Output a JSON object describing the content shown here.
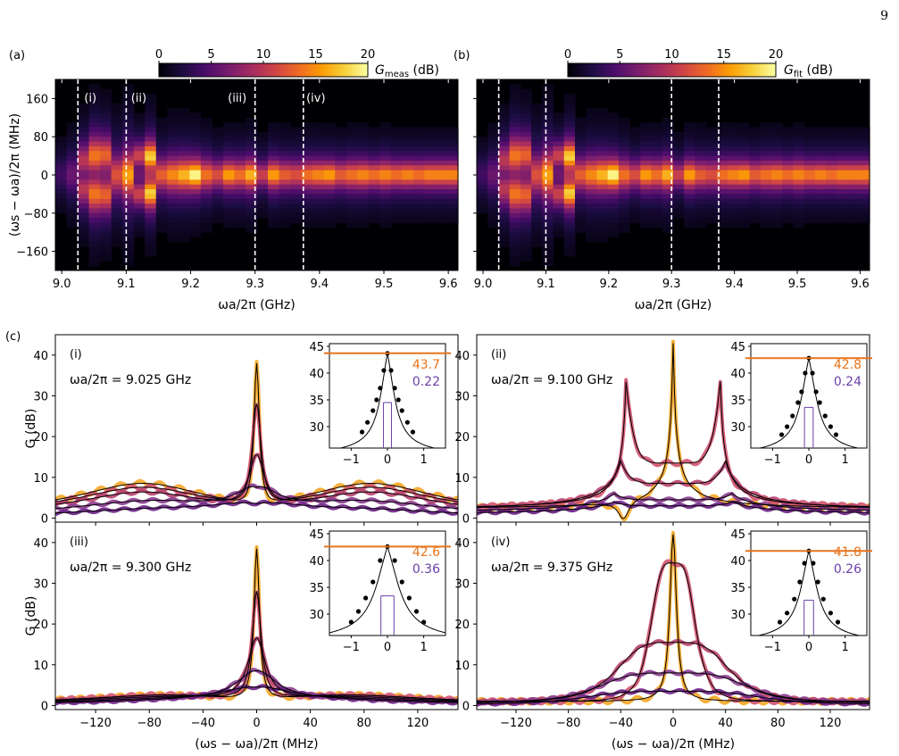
{
  "page_number": "9",
  "colors": {
    "colormap_stops": [
      "#000004",
      "#1b0c41",
      "#4a0c6b",
      "#781c6d",
      "#a52c60",
      "#cf4446",
      "#ed6925",
      "#fb9b06",
      "#f7d13d",
      "#fcffa4"
    ],
    "gain_colormap_stops": [
      "#000004",
      "#3b0f70",
      "#8c2981",
      "#de4968",
      "#fe9f6d",
      "#fcfdbf"
    ],
    "trace_colors": [
      "#f5a623",
      "#d2526e",
      "#b8416e",
      "#8a3a8f",
      "#6a1f84"
    ],
    "fit_line": "#000000",
    "inset_peak_line": "#e8731a",
    "inset_width_line": "#6b3fa8"
  },
  "panel_a": {
    "label": "(a)",
    "colorbar_label": "G",
    "colorbar_sub": "meas",
    "colorbar_unit": "(dB)",
    "colorbar_ticks": [
      "0",
      "5",
      "10",
      "15",
      "20"
    ],
    "marker_labels": [
      "(i)",
      "(ii)",
      "(iii)",
      "(iv)"
    ]
  },
  "panel_b": {
    "label": "(b)",
    "colorbar_label": "G",
    "colorbar_sub": "fit",
    "colorbar_unit": "(dB)",
    "colorbar_ticks": [
      "0",
      "5",
      "10",
      "15",
      "20"
    ]
  },
  "panel_c": {
    "label": "(c)"
  },
  "chart_data": [
    {
      "type": "heatmap",
      "id": "a",
      "title": "",
      "xlabel": "ωa/2π (GHz)",
      "ylabel": "(ωs − ωa)/2π (MHz)",
      "xlim": [
        8.99,
        9.615
      ],
      "ylim": [
        -200,
        200
      ],
      "xticks": [
        9.0,
        9.1,
        9.2,
        9.3,
        9.4,
        9.5,
        9.6
      ],
      "xtick_labels": [
        "9.0",
        "9.1",
        "9.2",
        "9.3",
        "9.4",
        "9.5",
        "9.6"
      ],
      "yticks": [
        160,
        80,
        0,
        -80,
        -160
      ],
      "ytick_labels": [
        "160",
        "80",
        "0",
        "−80",
        "−160"
      ],
      "zlim": [
        0,
        20
      ],
      "zlabel": "Gmeas (dB)",
      "marker_lines_ghz": [
        9.025,
        9.1,
        9.3,
        9.375
      ],
      "columns_peak_db": [
        4,
        6,
        10,
        14,
        13,
        12,
        16,
        11,
        18,
        13,
        15,
        17,
        20,
        14,
        12,
        16,
        14,
        17,
        11,
        16,
        13,
        12,
        14,
        15,
        16,
        13,
        14,
        15,
        14,
        15,
        14,
        15,
        14,
        15,
        15,
        15
      ],
      "columns_width_mhz": [
        90,
        95,
        100,
        105,
        100,
        90,
        95,
        75,
        80,
        70,
        72,
        68,
        60,
        65,
        60,
        58,
        62,
        60,
        55,
        58,
        60,
        62,
        60,
        58,
        55,
        58,
        60,
        58,
        56,
        58,
        56,
        54,
        56,
        55,
        54,
        55
      ],
      "columns_split_mhz": [
        0,
        0,
        30,
        40,
        42,
        0,
        0,
        40,
        38,
        0,
        0,
        0,
        0,
        0,
        0,
        0,
        0,
        0,
        0,
        0,
        0,
        0,
        0,
        0,
        0,
        0,
        0,
        0,
        0,
        0,
        0,
        0,
        0,
        0,
        0,
        0
      ]
    },
    {
      "type": "heatmap",
      "id": "b",
      "title": "",
      "xlabel": "ωa/2π (GHz)",
      "ylabel": "",
      "xlim": [
        8.99,
        9.615
      ],
      "ylim": [
        -200,
        200
      ],
      "xticks": [
        9.0,
        9.1,
        9.2,
        9.3,
        9.4,
        9.5,
        9.6
      ],
      "xtick_labels": [
        "9.0",
        "9.1",
        "9.2",
        "9.3",
        "9.4",
        "9.5",
        "9.6"
      ],
      "zlim": [
        0,
        20
      ],
      "zlabel": "Gfit (dB)",
      "marker_lines_ghz": [
        9.025,
        9.1,
        9.3,
        9.375
      ],
      "columns_peak_db": [
        4,
        6,
        10,
        14,
        13,
        12,
        16,
        11,
        18,
        13,
        15,
        17,
        20,
        14,
        12,
        16,
        14,
        17,
        11,
        16,
        13,
        12,
        14,
        15,
        16,
        13,
        14,
        15,
        14,
        15,
        14,
        15,
        14,
        15,
        15,
        15
      ],
      "columns_width_mhz": [
        90,
        95,
        100,
        105,
        100,
        90,
        95,
        75,
        80,
        70,
        72,
        68,
        60,
        65,
        60,
        58,
        62,
        60,
        55,
        58,
        60,
        62,
        60,
        58,
        55,
        58,
        60,
        58,
        56,
        58,
        56,
        54,
        56,
        55,
        54,
        55
      ],
      "columns_split_mhz": [
        0,
        0,
        30,
        40,
        42,
        0,
        0,
        40,
        38,
        0,
        0,
        0,
        0,
        0,
        0,
        0,
        0,
        0,
        0,
        0,
        0,
        0,
        0,
        0,
        0,
        0,
        0,
        0,
        0,
        0,
        0,
        0,
        0,
        0,
        0,
        0
      ]
    },
    {
      "type": "line",
      "id": "c-i",
      "panel_label": "(i)",
      "annotation": "ωa/2π = 9.025 GHz",
      "xlim": [
        -150,
        150
      ],
      "ylim": [
        -1,
        45
      ],
      "ylabel": "G (dB)",
      "yticks": [
        0,
        10,
        20,
        30,
        40
      ],
      "xticks": [
        -120,
        -80,
        -40,
        0,
        40,
        80,
        120
      ],
      "traces": [
        {
          "kind": "lorentz",
          "peak": 38,
          "width": 2.5,
          "side_amp": 7.5,
          "side_pos": 85,
          "side_w": 60,
          "base": 1
        },
        {
          "kind": "lorentz",
          "peak": 28,
          "width": 4,
          "side_amp": 6.5,
          "side_pos": 85,
          "side_w": 60,
          "base": 1
        },
        {
          "kind": "lorentz",
          "peak": 15.5,
          "width": 7,
          "side_amp": 5.5,
          "side_pos": 85,
          "side_w": 60,
          "base": 0.8
        },
        {
          "kind": "lorentz",
          "peak": 7.5,
          "width": 18,
          "side_amp": 3.5,
          "side_pos": 80,
          "side_w": 70,
          "base": 0.5
        },
        {
          "kind": "lorentz",
          "peak": 3.5,
          "width": 40,
          "side_amp": 1.5,
          "side_pos": 80,
          "side_w": 70,
          "base": 0.3
        }
      ],
      "inset": {
        "peak": 43.7,
        "width": 0.22,
        "peak_label": "43.7",
        "width_label": "0.22",
        "xlim": [
          -1.6,
          1.6
        ],
        "ylim": [
          26,
          45.5
        ],
        "xticks": [
          -1,
          0,
          1
        ],
        "yticks": [
          30,
          35,
          40,
          45
        ],
        "points_x": [
          -0.7,
          -0.55,
          -0.4,
          -0.3,
          -0.2,
          -0.1,
          0.0,
          0.1,
          0.2,
          0.3,
          0.4,
          0.55,
          0.7
        ],
        "points_y": [
          29,
          30.8,
          33,
          35,
          37.2,
          40.5,
          43.7,
          40.5,
          37.2,
          35,
          33,
          30.8,
          29
        ]
      }
    },
    {
      "type": "line",
      "id": "c-ii",
      "panel_label": "(ii)",
      "annotation": "ωa/2π = 9.100 GHz",
      "xlim": [
        -150,
        150
      ],
      "ylim": [
        -1,
        45
      ],
      "yticks": [
        0,
        10,
        20,
        30,
        40
      ],
      "xticks": [
        -120,
        -80,
        -40,
        0,
        40,
        80,
        120
      ],
      "traces": [
        {
          "kind": "center",
          "peak": 43,
          "width": 3,
          "dip_at": -38,
          "dip": -3,
          "base": 2
        },
        {
          "kind": "split",
          "peak": 33.5,
          "split": 36,
          "width": 4,
          "floor": 13.5,
          "base": 2
        },
        {
          "kind": "split",
          "peak": 14,
          "split": 40,
          "width": 15,
          "floor": 8.5,
          "base": 1.5
        },
        {
          "kind": "split",
          "peak": 6,
          "split": 45,
          "width": 25,
          "floor": 4.5,
          "base": 1.2
        },
        {
          "kind": "split",
          "peak": 4,
          "split": 45,
          "width": 30,
          "floor": 3,
          "base": 0.8
        }
      ],
      "inset": {
        "peak": 42.8,
        "width": 0.24,
        "peak_label": "42.8",
        "width_label": "0.24",
        "xlim": [
          -1.6,
          1.6
        ],
        "ylim": [
          26,
          45.5
        ],
        "xticks": [
          -1,
          0,
          1
        ],
        "yticks": [
          30,
          35,
          40,
          45
        ],
        "points_x": [
          -0.75,
          -0.6,
          -0.45,
          -0.3,
          -0.2,
          -0.1,
          0.0,
          0.1,
          0.2,
          0.3,
          0.45,
          0.6,
          0.75
        ],
        "points_y": [
          28.5,
          30,
          32,
          34.5,
          36.5,
          40,
          42.8,
          40,
          36.5,
          34.5,
          32,
          30,
          28.5
        ]
      }
    },
    {
      "type": "line",
      "id": "c-iii",
      "panel_label": "(iii)",
      "annotation": "ωa/2π = 9.300 GHz",
      "xlim": [
        -150,
        150
      ],
      "ylim": [
        -1,
        45
      ],
      "ylabel": "G (dB)",
      "yticks": [
        0,
        10,
        20,
        30,
        40
      ],
      "xticks": [
        -120,
        -80,
        -40,
        0,
        40,
        80,
        120
      ],
      "traces": [
        {
          "kind": "lorentz",
          "peak": 38.5,
          "width": 2.5,
          "side_amp": 2,
          "side_pos": 70,
          "side_w": 70,
          "base": 0.5
        },
        {
          "kind": "lorentz",
          "peak": 28,
          "width": 4,
          "side_amp": 2,
          "side_pos": 70,
          "side_w": 70,
          "base": 0.5
        },
        {
          "kind": "lorentz",
          "peak": 16.5,
          "width": 8,
          "side_amp": 1.5,
          "side_pos": 70,
          "side_w": 70,
          "base": 0.5
        },
        {
          "kind": "lorentz",
          "peak": 8.5,
          "width": 18,
          "side_amp": 1,
          "side_pos": 70,
          "side_w": 70,
          "base": 0.4
        },
        {
          "kind": "lorentz",
          "peak": 4.5,
          "width": 35,
          "side_amp": 0.5,
          "side_pos": 70,
          "side_w": 70,
          "base": 0.3
        }
      ],
      "inset": {
        "peak": 42.6,
        "width": 0.36,
        "peak_label": "42.6",
        "width_label": "0.36",
        "xlim": [
          -1.6,
          1.6
        ],
        "ylim": [
          26,
          45.5
        ],
        "xticks": [
          -1,
          0,
          1
        ],
        "yticks": [
          30,
          35,
          40,
          45
        ],
        "points_x": [
          -1.0,
          -0.8,
          -0.6,
          -0.4,
          -0.2,
          0.0,
          0.2,
          0.4,
          0.6,
          0.8,
          1.0
        ],
        "points_y": [
          28.5,
          30.5,
          33,
          36,
          40,
          42.6,
          40,
          36,
          33,
          30.5,
          28.5
        ]
      }
    },
    {
      "type": "line",
      "id": "c-iv",
      "panel_label": "(iv)",
      "annotation": "ωa/2π = 9.375 GHz",
      "xlim": [
        -150,
        150
      ],
      "ylim": [
        -1,
        45
      ],
      "yticks": [
        0,
        10,
        20,
        30,
        40
      ],
      "xticks": [
        -120,
        -80,
        -40,
        0,
        40,
        80,
        120
      ],
      "traces": [
        {
          "kind": "lorentz",
          "peak": 42,
          "width": 3,
          "side_amp": 0,
          "side_pos": 60,
          "side_w": 60,
          "base": 1
        },
        {
          "kind": "flat",
          "peak": 35,
          "width": 18,
          "base": 1
        },
        {
          "kind": "flat",
          "peak": 15.5,
          "width": 45,
          "base": 0.8
        },
        {
          "kind": "flat",
          "peak": 8,
          "width": 60,
          "base": 0.6
        },
        {
          "kind": "flat",
          "peak": 3.5,
          "width": 70,
          "base": 0.3
        }
      ],
      "inset": {
        "peak": 41.8,
        "width": 0.26,
        "peak_label": "41.8",
        "width_label": "0.26",
        "xlim": [
          -1.6,
          1.6
        ],
        "ylim": [
          26,
          45.5
        ],
        "xticks": [
          -1,
          0,
          1
        ],
        "yticks": [
          30,
          35,
          40,
          45
        ],
        "points_x": [
          -0.8,
          -0.6,
          -0.4,
          -0.25,
          -0.12,
          0.0,
          0.12,
          0.25,
          0.4,
          0.6,
          0.8
        ],
        "points_y": [
          28.5,
          30.2,
          32.8,
          36,
          39.5,
          41.8,
          39.5,
          36,
          32.8,
          30.2,
          28.5
        ]
      }
    }
  ],
  "axis_text": {
    "heatmap_xlabel": "ωa/2π (GHz)",
    "heatmap_ylabel": "(ωs − ωa)/2π (MHz)",
    "line_xlabel": "(ωs − ωa)/2π (MHz)",
    "line_ylabel": "G (dB)",
    "line_xtick_labels": [
      "−120",
      "−80",
      "−40",
      "0",
      "40",
      "80",
      "120"
    ],
    "line_ytick_labels": [
      "0",
      "10",
      "20",
      "30",
      "40"
    ],
    "inset_xtick_labels": [
      "−1",
      "0",
      "1"
    ],
    "inset_ytick_labels": [
      "30",
      "35",
      "40",
      "45"
    ]
  }
}
